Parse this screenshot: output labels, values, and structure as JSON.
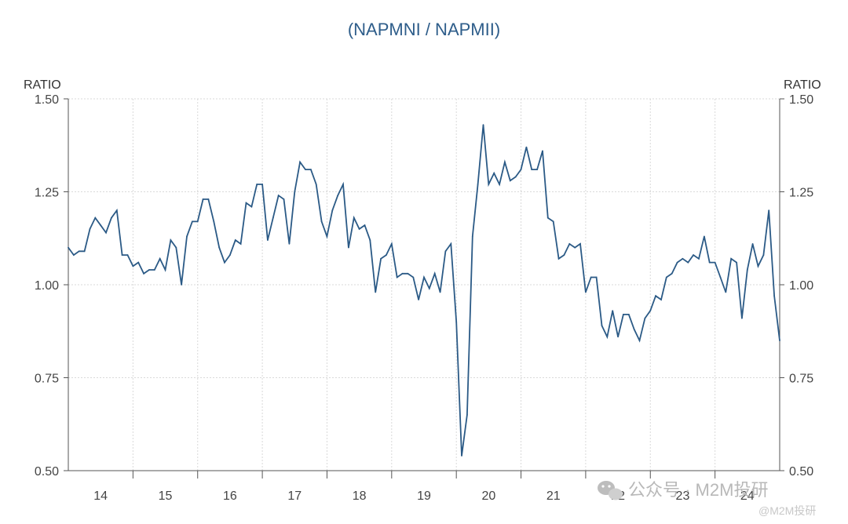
{
  "chart_data": {
    "type": "line",
    "title": "(NAPMNI / NAPMII)",
    "ylabel_left": "RATIO",
    "ylabel_right": "RATIO",
    "ylim": [
      0.5,
      1.5
    ],
    "yticks": [
      "0.50",
      "0.75",
      "1.00",
      "1.25",
      "1.50"
    ],
    "ytick_values": [
      0.5,
      0.75,
      1.0,
      1.25,
      1.5
    ],
    "xlim": [
      2013.0,
      2024.0
    ],
    "x_categories": [
      "14",
      "15",
      "16",
      "17",
      "18",
      "19",
      "20",
      "21",
      "22",
      "23",
      "24"
    ],
    "x_category_centers": [
      2013.5,
      2014.5,
      2015.5,
      2016.5,
      2017.5,
      2018.5,
      2019.5,
      2020.5,
      2021.5,
      2022.5,
      2023.5
    ],
    "x_year_boundaries": [
      2014,
      2015,
      2016,
      2017,
      2018,
      2019,
      2020,
      2021,
      2022,
      2023
    ],
    "grid": true,
    "series": [
      {
        "name": "NAPMNI / NAPMII",
        "color": "#2b5a86",
        "start_x": 2013.0,
        "step": 0.08333,
        "values": [
          1.1,
          1.08,
          1.09,
          1.09,
          1.15,
          1.18,
          1.16,
          1.14,
          1.18,
          1.2,
          1.08,
          1.08,
          1.05,
          1.06,
          1.03,
          1.04,
          1.04,
          1.07,
          1.04,
          1.12,
          1.1,
          1.0,
          1.13,
          1.17,
          1.17,
          1.23,
          1.23,
          1.17,
          1.1,
          1.06,
          1.08,
          1.12,
          1.11,
          1.22,
          1.21,
          1.27,
          1.27,
          1.12,
          1.18,
          1.24,
          1.23,
          1.11,
          1.25,
          1.33,
          1.31,
          1.31,
          1.27,
          1.17,
          1.13,
          1.2,
          1.24,
          1.27,
          1.1,
          1.18,
          1.15,
          1.16,
          1.12,
          0.98,
          1.07,
          1.08,
          1.11,
          1.02,
          1.03,
          1.03,
          1.02,
          0.96,
          1.02,
          0.99,
          1.03,
          0.98,
          1.09,
          1.11,
          0.9,
          0.54,
          0.65,
          1.13,
          1.27,
          1.43,
          1.27,
          1.3,
          1.27,
          1.33,
          1.28,
          1.29,
          1.31,
          1.37,
          1.31,
          1.31,
          1.36,
          1.18,
          1.17,
          1.07,
          1.08,
          1.11,
          1.1,
          1.11,
          0.98,
          1.02,
          1.02,
          0.89,
          0.86,
          0.93,
          0.86,
          0.92,
          0.92,
          0.88,
          0.85,
          0.91,
          0.93,
          0.97,
          0.96,
          1.02,
          1.03,
          1.06,
          1.07,
          1.06,
          1.08,
          1.07,
          1.13,
          1.06,
          1.06,
          1.02,
          0.98,
          1.07,
          1.06,
          0.91,
          1.04,
          1.11,
          1.05,
          1.08,
          1.2,
          0.97,
          0.85
        ]
      }
    ]
  },
  "watermark": {
    "line1": "公众号 · M2M投研",
    "line2": "@M2M投研"
  }
}
